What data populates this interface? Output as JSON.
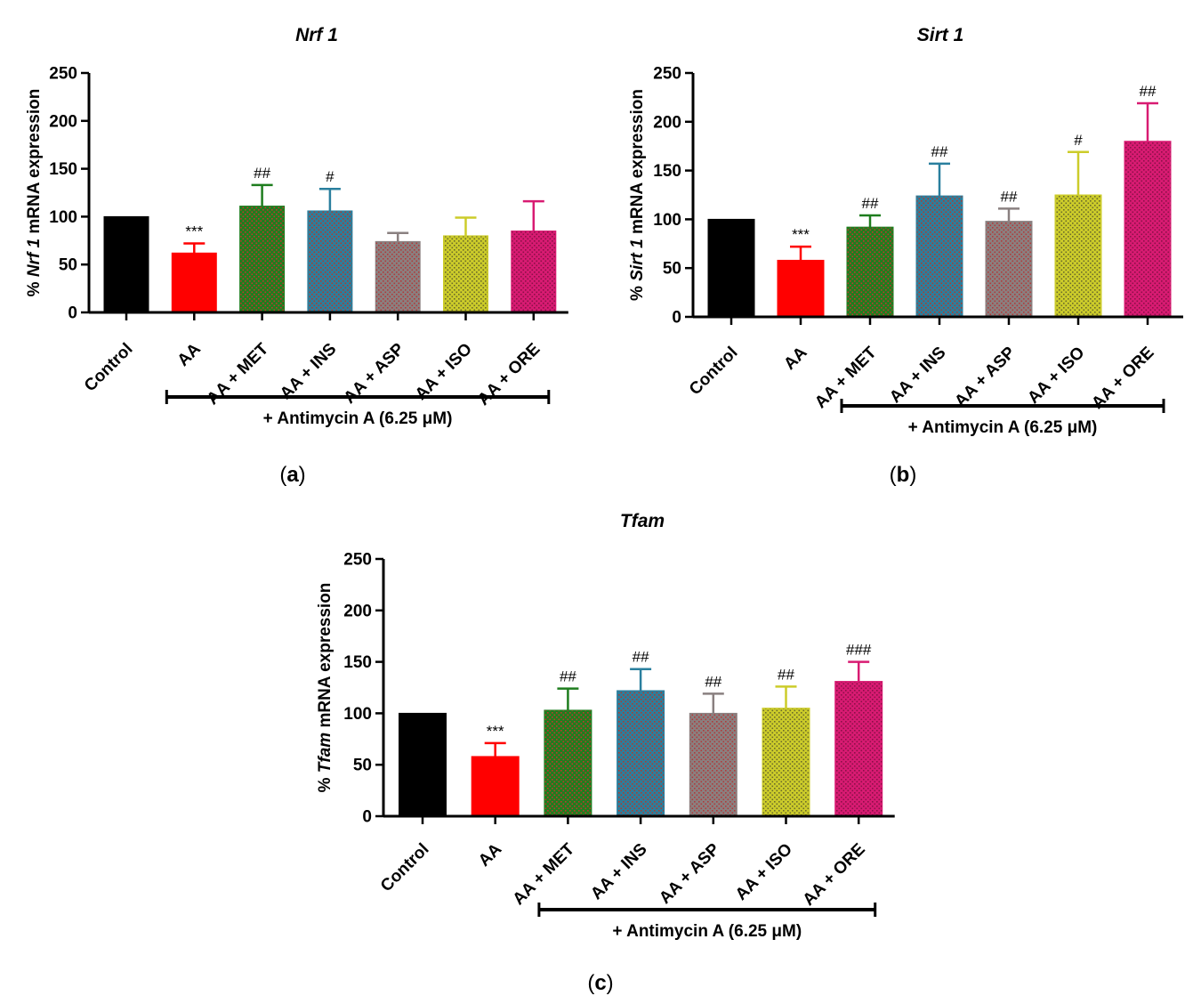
{
  "figure": {
    "panels": [
      {
        "letter": "a",
        "label_open": "(",
        "label_close": ")"
      },
      {
        "letter": "b",
        "label_open": "(",
        "label_close": ")"
      },
      {
        "letter": "c",
        "label_open": "(",
        "label_close": ")"
      }
    ]
  },
  "chart_data": [
    {
      "type": "bar",
      "title": "Nrf 1",
      "ylabel_prefix": "% ",
      "ylabel_italic": "Nrf 1",
      "ylabel_suffix": " mRNA expression",
      "xlabel": "",
      "categories": [
        "Control",
        "AA",
        "AA + MET",
        "AA + INS",
        "AA + ASP",
        "AA + ISO",
        "AA + ORE"
      ],
      "values": [
        100,
        62,
        111,
        106,
        74,
        80,
        85
      ],
      "errors": [
        0,
        10,
        22,
        23,
        9,
        19,
        31
      ],
      "significance": [
        "",
        "***",
        "##",
        "#",
        "",
        "",
        ""
      ],
      "colors": [
        "#000000",
        "#ff0000",
        "#1e7d1e",
        "#2a7f9e",
        "#8a8080",
        "#cccc2a",
        "#d81b72"
      ],
      "ylim": [
        0,
        250
      ],
      "yticks": [
        0,
        50,
        100,
        150,
        200,
        250
      ],
      "group_label": "+ Antimycin A (6.25 μM)",
      "group_span": [
        "AA",
        "AA + ORE"
      ]
    },
    {
      "type": "bar",
      "title": "Sirt 1",
      "ylabel_prefix": "% ",
      "ylabel_italic": "Sirt 1",
      "ylabel_suffix": " mRNA expression",
      "xlabel": "",
      "categories": [
        "Control",
        "AA",
        "AA + MET",
        "AA + INS",
        "AA + ASP",
        "AA + ISO",
        "AA + ORE"
      ],
      "values": [
        100,
        58,
        92,
        124,
        98,
        125,
        180
      ],
      "errors": [
        0,
        14,
        12,
        33,
        13,
        44,
        39
      ],
      "significance": [
        "",
        "***",
        "##",
        "##",
        "##",
        "#",
        "##"
      ],
      "colors": [
        "#000000",
        "#ff0000",
        "#1e7d1e",
        "#2a7f9e",
        "#8a8080",
        "#cccc2a",
        "#d81b72"
      ],
      "ylim": [
        0,
        250
      ],
      "yticks": [
        0,
        50,
        100,
        150,
        200,
        250
      ],
      "group_label": "+ Antimycin A (6.25 μM)",
      "group_span": [
        "AA + MET",
        "AA + ORE"
      ]
    },
    {
      "type": "bar",
      "title": "Tfam",
      "ylabel_prefix": "% ",
      "ylabel_italic": "Tfam",
      "ylabel_suffix": " mRNA expression",
      "xlabel": "",
      "categories": [
        "Control",
        "AA",
        "AA + MET",
        "AA + INS",
        "AA + ASP",
        "AA + ISO",
        "AA + ORE"
      ],
      "values": [
        100,
        58,
        103,
        122,
        100,
        105,
        131
      ],
      "errors": [
        0,
        13,
        21,
        21,
        19,
        21,
        19
      ],
      "significance": [
        "",
        "***",
        "##",
        "##",
        "##",
        "##",
        "###"
      ],
      "colors": [
        "#000000",
        "#ff0000",
        "#1e7d1e",
        "#2a7f9e",
        "#8a8080",
        "#cccc2a",
        "#d81b72"
      ],
      "ylim": [
        0,
        250
      ],
      "yticks": [
        0,
        50,
        100,
        150,
        200,
        250
      ],
      "group_label": "+ Antimycin A (6.25 μM)",
      "group_span": [
        "AA + MET",
        "AA + ORE"
      ]
    }
  ]
}
